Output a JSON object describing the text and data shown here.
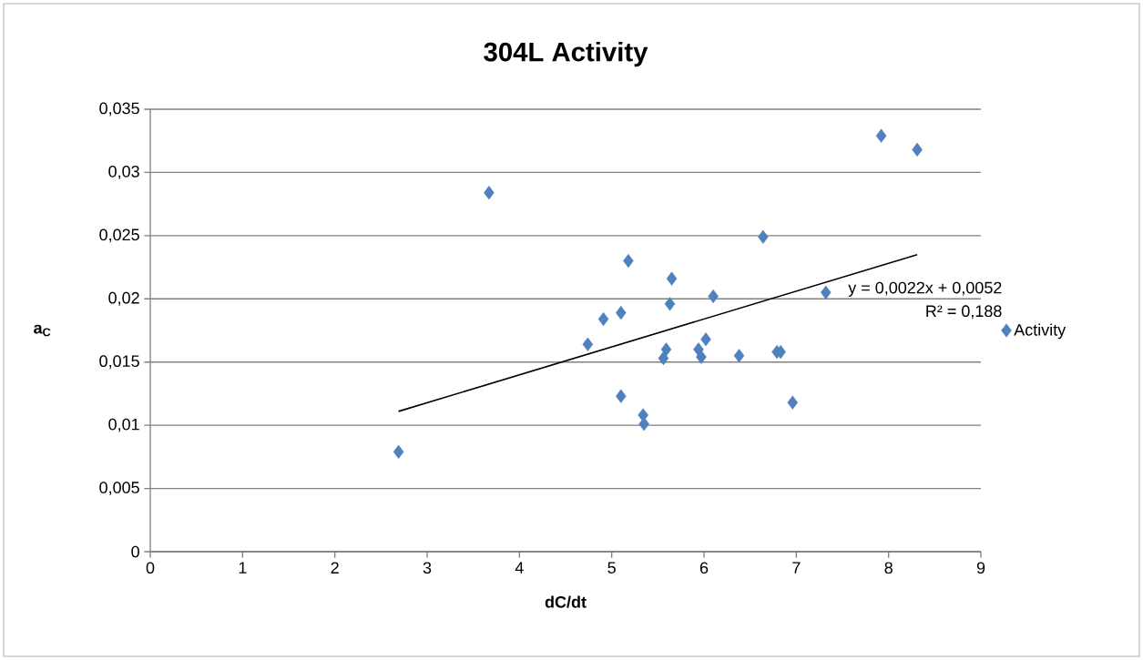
{
  "chart_data": {
    "type": "scatter",
    "title": "304L Activity",
    "xlabel": "dC/dt",
    "ylabel": "**a$_{C}$**",
    "series": [
      {
        "name": "Activity",
        "type": "scatter",
        "color": "#4f81bd",
        "marker": "diamond",
        "x": [
          2.69,
          3.67,
          4.74,
          4.91,
          5.1,
          5.18,
          5.1,
          5.34,
          5.35,
          5.56,
          5.59,
          5.63,
          5.65,
          5.94,
          5.97,
          6.02,
          6.1,
          6.38,
          6.64,
          6.79,
          6.83,
          6.96,
          7.32,
          7.92,
          8.31
        ],
        "values": [
          0.0079,
          0.0284,
          0.0164,
          0.0184,
          0.0189,
          0.023,
          0.0123,
          0.0108,
          0.0101,
          0.0153,
          0.016,
          0.0196,
          0.0216,
          0.016,
          0.0154,
          0.0168,
          0.0202,
          0.0155,
          0.0249,
          0.0158,
          0.0158,
          0.0118,
          0.0205,
          0.0329,
          0.0318
        ]
      },
      {
        "type": "line",
        "color": "#000000",
        "marker": "none",
        "x": [
          2.69,
          8.31
        ],
        "values": [
          0.0111,
          0.0235
        ]
      }
    ],
    "xlim": [
      0,
      9
    ],
    "xticks": [
      0,
      1,
      2,
      3,
      4,
      5,
      6,
      7,
      8,
      9
    ],
    "ylim": [
      0,
      0.035
    ],
    "yticks": [
      {
        "value": 0,
        "label": "0"
      },
      {
        "value": 0.005,
        "label": "0,005"
      },
      {
        "value": 0.01,
        "label": "0,01"
      },
      {
        "value": 0.015,
        "label": "0,015"
      },
      {
        "value": 0.02,
        "label": "0,02"
      },
      {
        "value": 0.025,
        "label": "0,025"
      },
      {
        "value": 0.03,
        "label": "0,03"
      },
      {
        "value": 0.035,
        "label": "0,035"
      }
    ],
    "grid": "y",
    "legend": "right",
    "annotations": [
      "y = 0,0022x + 0,0052",
      "R² = 0,188"
    ]
  }
}
